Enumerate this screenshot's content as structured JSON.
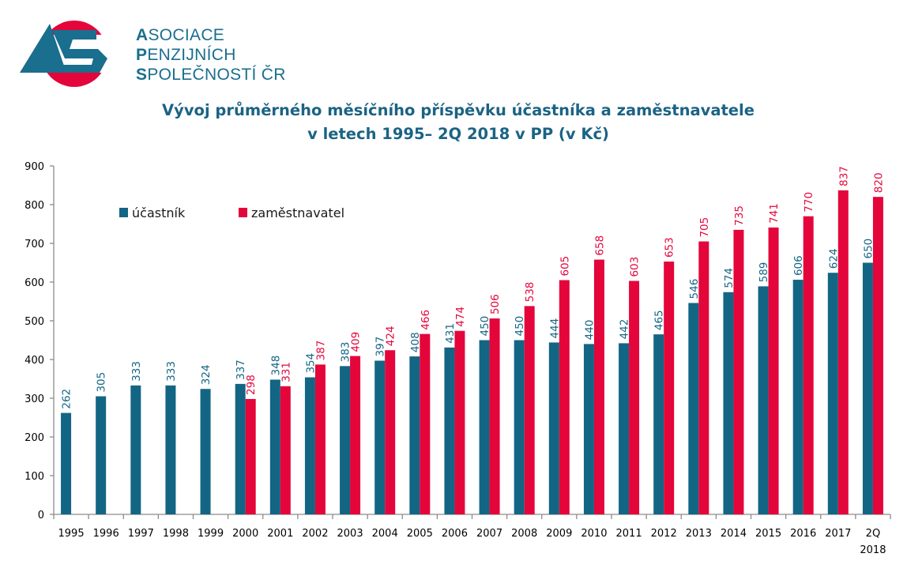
{
  "header": {
    "org_name": {
      "line1_cap": "A",
      "line1_rest": "SOCIACE",
      "line2_cap": "P",
      "line2_rest": "ENZIJNÍCH",
      "line3_cap": "S",
      "line3_rest": "POLEČNOSTÍ ČR"
    },
    "logo_icon": "aps-logo"
  },
  "colors": {
    "ucastnik": "#136584",
    "zamestnavatel": "#e4053b",
    "title": "#1b6384",
    "axis": "#8c8c8c"
  },
  "chart_data": {
    "type": "bar",
    "title_line1": "Vývoj průměrného měsíčního příspěvku účastníka a zaměstnavatele",
    "title_line2": "v letech 1995– 2Q 2018 v PP (v Kč)",
    "xlabel": "",
    "ylabel": "",
    "ylim": [
      0,
      900
    ],
    "yticks": [
      0,
      100,
      200,
      300,
      400,
      500,
      600,
      700,
      800,
      900
    ],
    "grid": false,
    "legend_position": "top-left",
    "categories": [
      "1995",
      "1996",
      "1997",
      "1998",
      "1999",
      "2000",
      "2001",
      "2002",
      "2003",
      "2004",
      "2005",
      "2006",
      "2007",
      "2008",
      "2009",
      "2010",
      "2011",
      "2012",
      "2013",
      "2014",
      "2015",
      "2016",
      "2017",
      "2Q 2018"
    ],
    "series": [
      {
        "name": "účastník",
        "color": "#136584",
        "values": [
          262,
          305,
          333,
          333,
          324,
          337,
          348,
          354,
          383,
          397,
          408,
          431,
          450,
          450,
          444,
          440,
          442,
          465,
          546,
          574,
          589,
          606,
          624,
          650
        ]
      },
      {
        "name": "zaměstnavatel",
        "color": "#e4053b",
        "values": [
          null,
          null,
          null,
          null,
          null,
          298,
          331,
          387,
          409,
          424,
          466,
          474,
          506,
          538,
          605,
          658,
          603,
          653,
          705,
          735,
          741,
          770,
          837,
          820
        ]
      }
    ]
  }
}
